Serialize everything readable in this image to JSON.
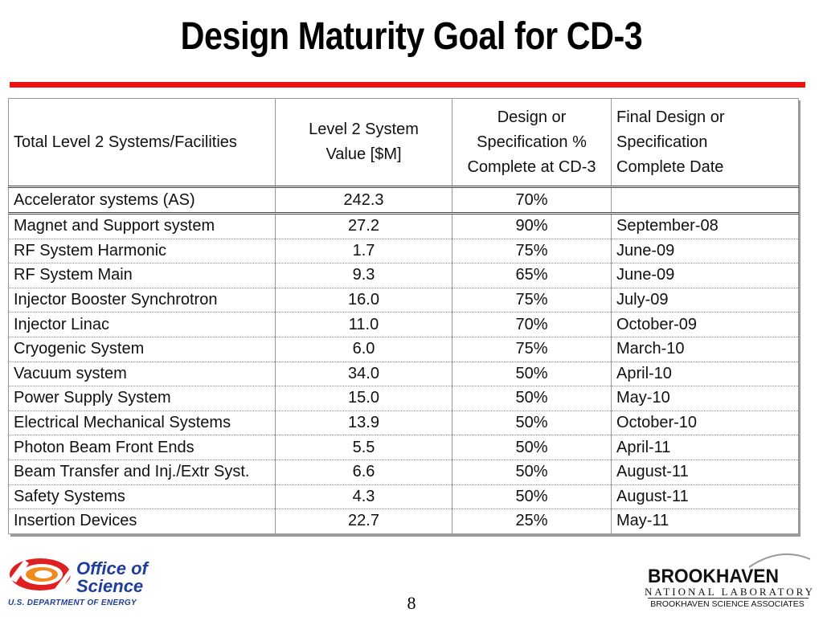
{
  "title": "Design Maturity Goal for CD-3",
  "table": {
    "headers": [
      "Total Level 2 Systems/Facilities",
      "Level 2 System Value [$M]",
      "Design or Specification % Complete at CD-3",
      "Final Design or Specification Complete Date"
    ],
    "header_lines": {
      "h2": [
        "Level 2 System",
        "Value [$M]"
      ],
      "h3": [
        "Design or",
        "Specification %",
        "Complete at CD-3"
      ],
      "h4": [
        "Final Design or",
        "Specification",
        "Complete Date"
      ]
    },
    "summary": {
      "name": "Accelerator systems (AS)",
      "value": "242.3",
      "pct": "70%",
      "date": ""
    },
    "rows": [
      {
        "name": "Magnet and Support system",
        "value": "27.2",
        "pct": "90%",
        "date": "September-08"
      },
      {
        "name": "RF System Harmonic",
        "value": "1.7",
        "pct": "75%",
        "date": "June-09"
      },
      {
        "name": "RF System Main",
        "value": "9.3",
        "pct": "65%",
        "date": "June-09"
      },
      {
        "name": "Injector Booster Synchrotron",
        "value": "16.0",
        "pct": "75%",
        "date": "July-09"
      },
      {
        "name": "Injector Linac",
        "value": "11.0",
        "pct": "70%",
        "date": "October-09"
      },
      {
        "name": "Cryogenic System",
        "value": "6.0",
        "pct": "75%",
        "date": "March-10"
      },
      {
        "name": "Vacuum system",
        "value": "34.0",
        "pct": "50%",
        "date": "April-10"
      },
      {
        "name": "Power Supply System",
        "value": "15.0",
        "pct": "50%",
        "date": "May-10"
      },
      {
        "name": "Electrical Mechanical Systems",
        "value": "13.9",
        "pct": "50%",
        "date": "October-10"
      },
      {
        "name": "Photon Beam Front Ends",
        "value": "5.5",
        "pct": "50%",
        "date": "April-11"
      },
      {
        "name": "Beam Transfer and Inj./Extr Syst.",
        "value": "6.6",
        "pct": "50%",
        "date": "August-11"
      },
      {
        "name": "Safety Systems",
        "value": "4.3",
        "pct": "50%",
        "date": "August-11"
      },
      {
        "name": "Insertion Devices",
        "value": "22.7",
        "pct": "25%",
        "date": "May-11"
      }
    ]
  },
  "footer": {
    "office_line1": "Office of",
    "office_line2": "Science",
    "doe": "U.S. DEPARTMENT OF ENERGY",
    "page_number": "8",
    "bnl_name": "BROOKHAVEN",
    "bnl_sub": "NATIONAL LABORATORY",
    "bsa": "BROOKHAVEN SCIENCE ASSOCIATES"
  },
  "colors": {
    "title_rule": "#ee1111",
    "oos_blue": "#1f3d99",
    "oos_orange": "#f08a1c",
    "oos_red": "#e02020"
  }
}
